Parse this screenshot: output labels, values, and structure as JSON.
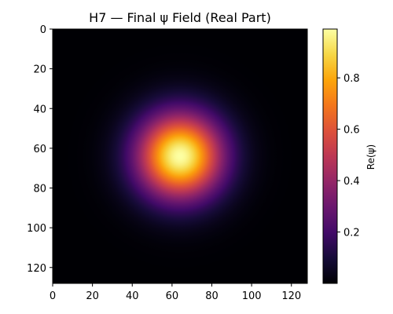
{
  "chart_data": {
    "type": "heatmap",
    "title": "H7 — Final ψ Field (Real Part)",
    "xlabel": "",
    "ylabel": "",
    "grid_size": 128,
    "xlim": [
      0,
      128
    ],
    "ylim": [
      128,
      0
    ],
    "x_ticks": [
      0,
      20,
      40,
      60,
      80,
      100,
      120
    ],
    "y_ticks": [
      0,
      20,
      40,
      60,
      80,
      100,
      120
    ],
    "field": {
      "shape": "gaussian",
      "center_x": 64,
      "center_y": 64,
      "sigma": 15,
      "peak": 0.99,
      "min": 0.0
    },
    "colormap": "inferno",
    "colorbar": {
      "label": "Re(ψ)",
      "vmin": 0.0,
      "vmax": 0.99,
      "ticks": [
        0.2,
        0.4,
        0.6,
        0.8
      ],
      "tick_labels": [
        "0.2",
        "0.4",
        "0.6",
        "0.8"
      ]
    },
    "grid": false
  }
}
